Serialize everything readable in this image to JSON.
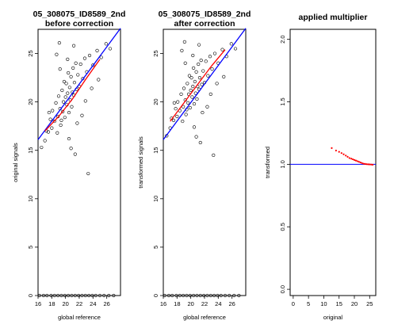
{
  "chart_data": [
    {
      "type": "scatter",
      "title": "05_308075_ID8589_2nd",
      "subtitle": "before correction",
      "xlabel": "global reference",
      "ylabel": "original signals",
      "xlim": [
        16,
        28
      ],
      "ylim": [
        0,
        27.5
      ],
      "xticks": [
        "16",
        "18",
        "20",
        "22",
        "24",
        "26"
      ],
      "yticks": [
        "0",
        "5",
        "10",
        "15",
        "20",
        "25"
      ],
      "series": [
        {
          "style": "open-circle",
          "x": [
            17.2,
            17.8,
            18.1,
            18.4,
            18.6,
            18.9,
            19.0,
            19.2,
            19.3,
            19.5,
            19.6,
            19.7,
            19.8,
            19.9,
            20.0,
            20.1,
            20.2,
            20.3,
            20.4,
            20.5,
            20.6,
            20.7,
            20.8,
            20.9,
            21.0,
            21.1,
            21.2,
            21.3,
            21.5,
            21.6,
            21.8,
            22.0,
            22.2,
            22.5,
            22.8,
            23.1,
            23.5,
            24.0,
            24.6,
            25.2,
            25.9,
            26.5,
            16.5,
            17.0,
            17.5,
            18.0,
            18.8,
            19.4,
            20.3,
            21.2,
            22.4,
            23.8,
            24.8,
            19.2,
            20.8,
            21.7,
            22.9,
            18.7,
            20.5,
            19.1,
            21.4,
            17.6,
            23.3
          ],
          "y": [
            17.0,
            18.2,
            19.1,
            18.0,
            19.9,
            18.5,
            20.6,
            19.3,
            17.6,
            21.2,
            19.0,
            20.0,
            22.1,
            18.4,
            20.5,
            21.9,
            19.7,
            20.9,
            23.0,
            18.9,
            21.5,
            20.2,
            22.6,
            19.5,
            21.0,
            23.5,
            20.7,
            22.0,
            24.0,
            21.3,
            22.8,
            21.6,
            23.9,
            22.4,
            24.5,
            23.1,
            24.8,
            23.8,
            25.3,
            24.6,
            26.0,
            25.5,
            15.3,
            16.0,
            16.9,
            17.3,
            16.8,
            18.1,
            24.4,
            25.8,
            18.6,
            21.4,
            22.3,
            23.4,
            15.2,
            17.8,
            20.1,
            24.9,
            16.2,
            26.1,
            14.6,
            18.9,
            12.6
          ],
          "zeros_x": [
            16.2,
            16.8,
            17.3,
            17.9,
            18.4,
            18.9,
            19.4,
            19.9,
            20.4,
            20.9,
            21.4,
            21.9,
            22.4,
            22.9,
            23.4,
            23.9,
            24.4,
            25.0,
            25.6,
            26.3,
            27.0
          ]
        }
      ],
      "lines": [
        {
          "color": "#0000ff",
          "x": [
            16,
            28
          ],
          "y": [
            16.1,
            27.6
          ]
        },
        {
          "color": "#ff0000",
          "x": [
            17.0,
            19.0,
            21.0,
            23.0,
            25.0
          ],
          "y": [
            17.0,
            18.5,
            20.3,
            22.4,
            24.4
          ]
        }
      ],
      "colors": {
        "points": "#000000",
        "fit": "#0000ff",
        "smooth": "#ff0000"
      }
    },
    {
      "type": "scatter",
      "title": "05_308075_ID8589_2nd",
      "subtitle": "after correction",
      "xlabel": "global reference",
      "ylabel": "transformed signals",
      "xlim": [
        16,
        28
      ],
      "ylim": [
        0,
        27.5
      ],
      "xticks": [
        "16",
        "18",
        "20",
        "22",
        "24",
        "26"
      ],
      "yticks": [
        "0",
        "5",
        "10",
        "15",
        "20",
        "25"
      ],
      "series": [
        {
          "style": "open-circle",
          "x": [
            17.2,
            17.8,
            18.1,
            18.4,
            18.6,
            18.9,
            19.0,
            19.2,
            19.3,
            19.5,
            19.6,
            19.7,
            19.8,
            19.9,
            20.0,
            20.1,
            20.2,
            20.3,
            20.4,
            20.5,
            20.6,
            20.7,
            20.8,
            20.9,
            21.0,
            21.1,
            21.2,
            21.3,
            21.5,
            21.6,
            21.8,
            22.0,
            22.2,
            22.5,
            22.8,
            23.1,
            23.5,
            24.0,
            24.6,
            25.2,
            25.9,
            26.5,
            16.5,
            17.0,
            17.5,
            18.0,
            18.8,
            19.4,
            20.3,
            21.2,
            22.4,
            23.8,
            24.8,
            19.2,
            20.8,
            21.7,
            22.9,
            18.7,
            20.5,
            19.1,
            21.4,
            17.6,
            23.3
          ],
          "y": [
            18.3,
            19.3,
            20.0,
            19.1,
            20.8,
            19.5,
            21.4,
            20.2,
            18.7,
            21.9,
            19.9,
            20.8,
            22.7,
            19.4,
            21.2,
            22.5,
            20.5,
            21.6,
            23.5,
            19.8,
            22.1,
            20.9,
            23.1,
            20.3,
            21.6,
            23.9,
            21.3,
            22.5,
            24.3,
            21.8,
            23.2,
            22.0,
            24.2,
            22.7,
            24.7,
            23.4,
            25.0,
            24.0,
            25.4,
            24.7,
            26.0,
            25.5,
            16.5,
            17.3,
            18.1,
            18.5,
            18.0,
            19.2,
            24.8,
            25.9,
            19.5,
            21.9,
            22.6,
            24.0,
            16.4,
            18.9,
            20.8,
            25.3,
            17.4,
            26.2,
            15.8,
            19.9,
            14.5
          ],
          "zeros_x": [
            16.2,
            16.8,
            17.3,
            17.9,
            18.4,
            18.9,
            19.4,
            19.9,
            20.4,
            20.9,
            21.4,
            21.9,
            22.4,
            22.9,
            23.4,
            23.9,
            24.4,
            25.0,
            25.6,
            26.3,
            27.0
          ]
        }
      ],
      "lines": [
        {
          "color": "#0000ff",
          "x": [
            16,
            28
          ],
          "y": [
            16.1,
            27.6
          ]
        },
        {
          "color": "#ff0000",
          "x": [
            17.0,
            19.0,
            21.0,
            23.0,
            25.0
          ],
          "y": [
            18.0,
            19.9,
            21.8,
            23.7,
            25.4
          ]
        }
      ],
      "colors": {
        "points": "#000000",
        "fit": "#0000ff",
        "smooth": "#ff0000"
      }
    },
    {
      "type": "scatter",
      "title": "applied multiplier",
      "subtitle": "",
      "xlabel": "original",
      "ylabel": "transformed",
      "xlim": [
        -1,
        27
      ],
      "ylim": [
        -0.05,
        2.08
      ],
      "xticks": [
        "0",
        "5",
        "10",
        "15",
        "20",
        "25"
      ],
      "yticks": [
        "0.0",
        "0.5",
        "1.0",
        "1.5",
        "2.0"
      ],
      "hline": {
        "y": 1.0,
        "color": "#0000ff"
      },
      "series": [
        {
          "style": "dot",
          "color": "#ff0000",
          "x": [
            12.6,
            14.0,
            15.0,
            15.8,
            16.5,
            17.2,
            17.8,
            18.4,
            19.0,
            19.5,
            20.0,
            20.5,
            21.0,
            21.5,
            22.0,
            22.5,
            23.0,
            23.5,
            24.0,
            24.5,
            25.0,
            25.5,
            26.0
          ],
          "y": [
            1.13,
            1.11,
            1.1,
            1.09,
            1.08,
            1.07,
            1.06,
            1.05,
            1.045,
            1.04,
            1.035,
            1.03,
            1.025,
            1.02,
            1.015,
            1.01,
            1.005,
            1.003,
            1.001,
            1.0,
            0.999,
            0.998,
            0.997
          ]
        }
      ],
      "colors": {
        "points": "#ff0000",
        "ref": "#0000ff"
      }
    }
  ]
}
